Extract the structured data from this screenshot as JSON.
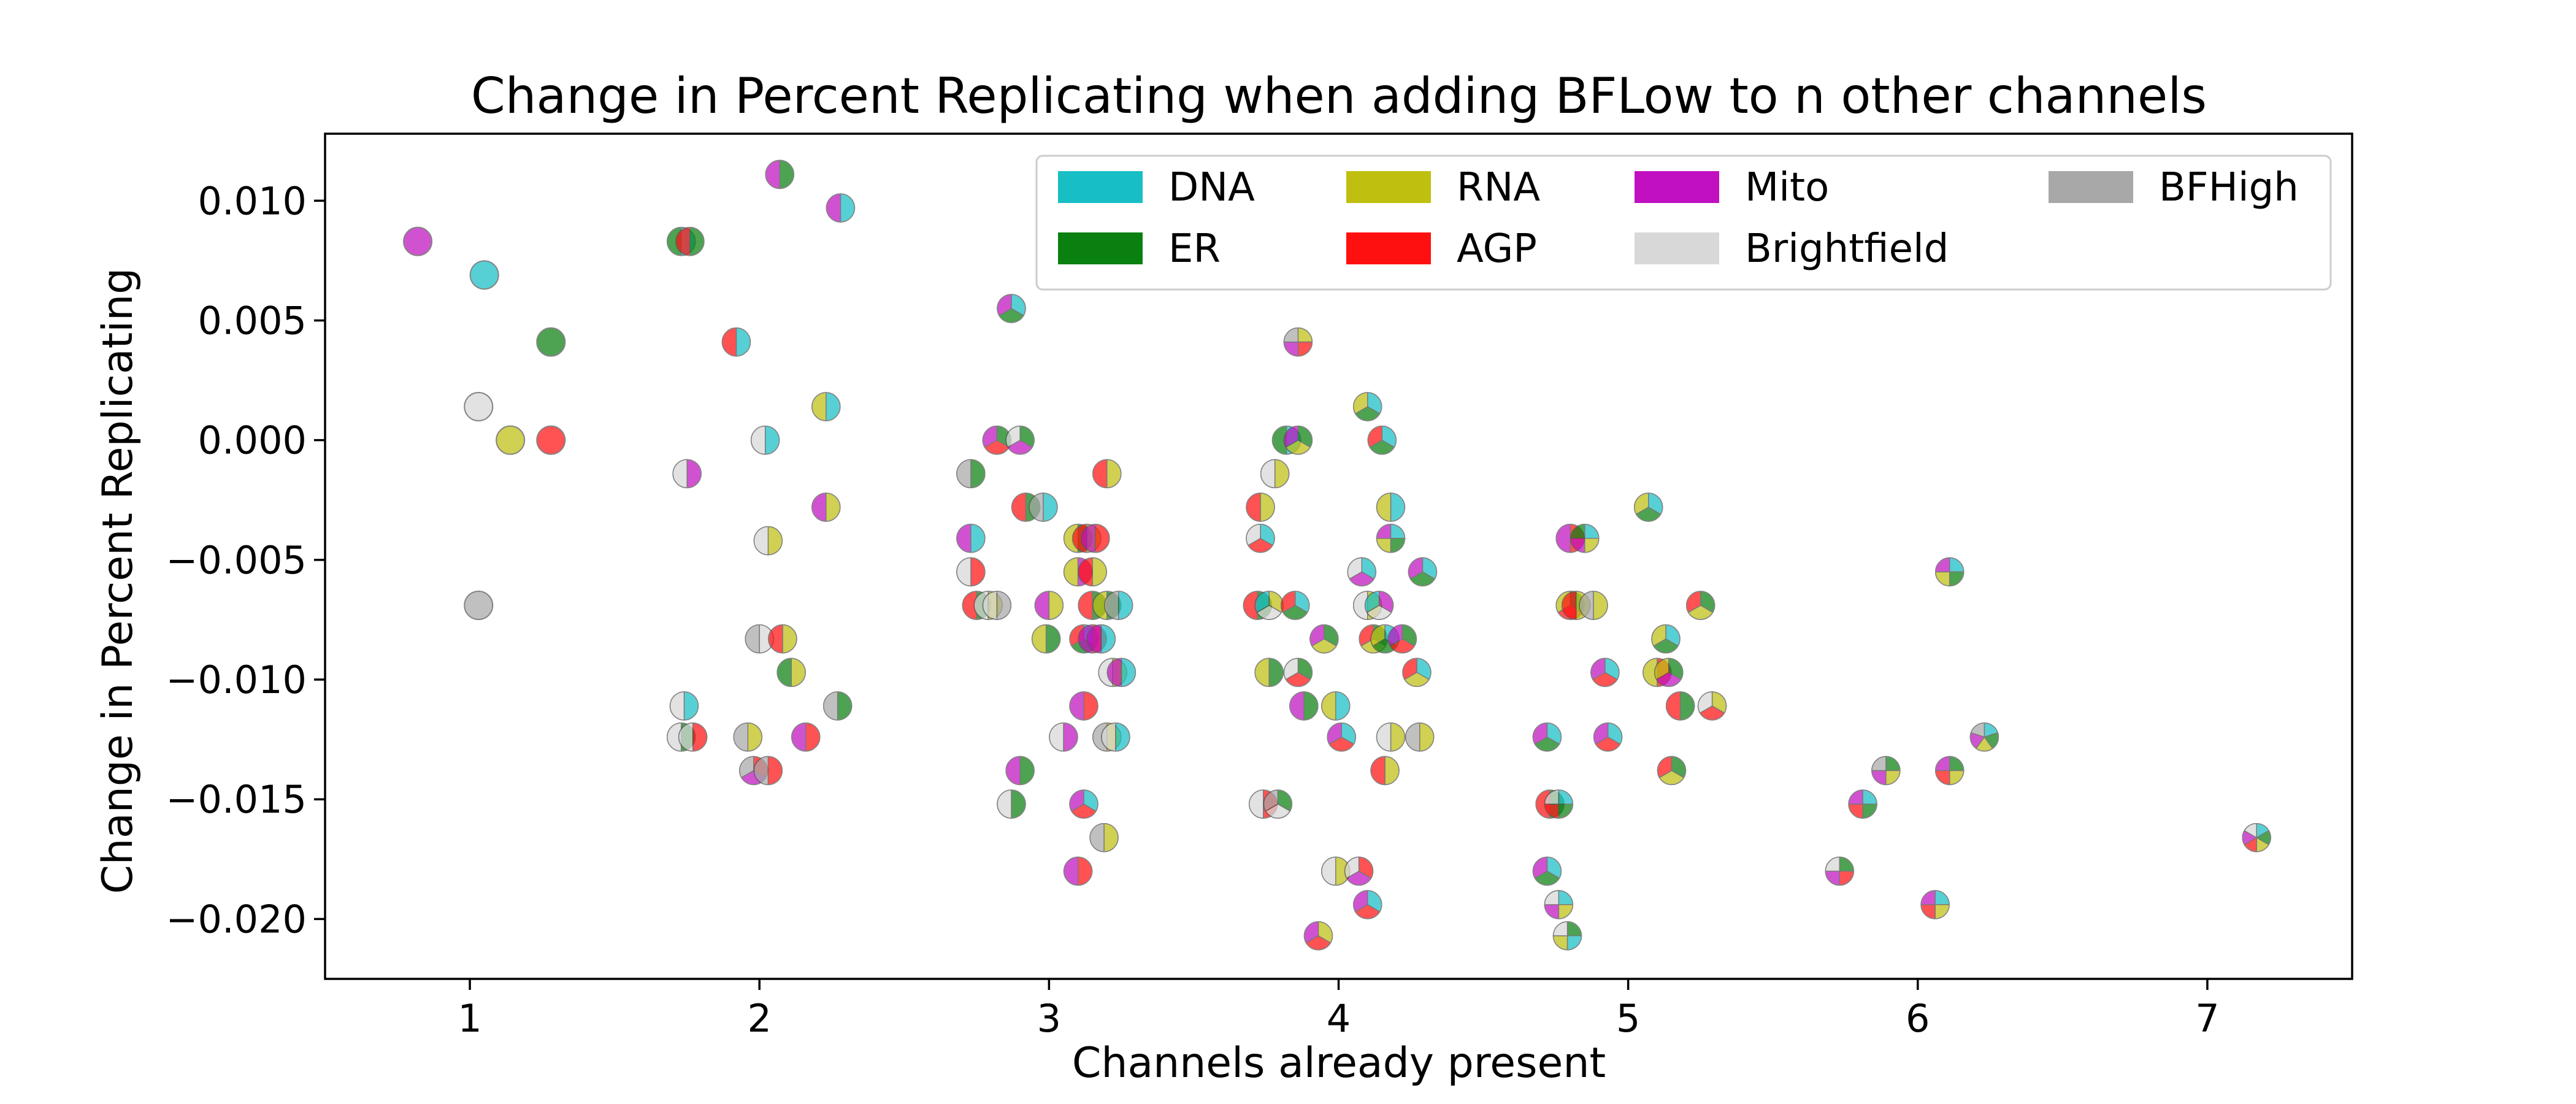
{
  "chart_data": {
    "type": "scatter",
    "title": "Change in Percent Replicating when adding BFLow to n other channels",
    "xlabel": "Channels already present",
    "ylabel": "Change in Percent Replicating",
    "xlim": [
      0.5,
      7.5
    ],
    "ylim": [
      -0.0225,
      0.0128
    ],
    "grid": false,
    "legend_position": "top-right",
    "x_ticks": [
      {
        "value": 1,
        "label": "1"
      },
      {
        "value": 2,
        "label": "2"
      },
      {
        "value": 3,
        "label": "3"
      },
      {
        "value": 4,
        "label": "4"
      },
      {
        "value": 5,
        "label": "5"
      },
      {
        "value": 6,
        "label": "6"
      },
      {
        "value": 7,
        "label": "7"
      }
    ],
    "y_ticks": [
      {
        "value": 0.01,
        "label": "0.010"
      },
      {
        "value": 0.005,
        "label": "0.005"
      },
      {
        "value": 0.0,
        "label": "0.000"
      },
      {
        "value": -0.005,
        "label": "−0.005"
      },
      {
        "value": -0.01,
        "label": "−0.010"
      },
      {
        "value": -0.015,
        "label": "−0.015"
      },
      {
        "value": -0.02,
        "label": "−0.020"
      }
    ],
    "channels": [
      {
        "key": "DNA",
        "name": "DNA",
        "color": "#17bfc5"
      },
      {
        "key": "ER",
        "name": "ER",
        "color": "#0a8010"
      },
      {
        "key": "RNA",
        "name": "RNA",
        "color": "#bfbf10"
      },
      {
        "key": "AGP",
        "name": "AGP",
        "color": "#ff1010"
      },
      {
        "key": "Mito",
        "name": "Mito",
        "color": "#c010c0"
      },
      {
        "key": "Brightfield",
        "name": "Brightfield",
        "color": "#d8d8d8"
      },
      {
        "key": "BFHigh",
        "name": "BFHigh",
        "color": "#a8a8a8"
      }
    ],
    "points": [
      {
        "x": 0.82,
        "y": 0.0083,
        "channels": [
          "Mito"
        ]
      },
      {
        "x": 1.05,
        "y": 0.0069,
        "channels": [
          "DNA"
        ]
      },
      {
        "x": 1.28,
        "y": 0.0041,
        "channels": [
          "ER"
        ]
      },
      {
        "x": 1.03,
        "y": 0.0014,
        "channels": [
          "Brightfield"
        ]
      },
      {
        "x": 1.14,
        "y": 0.0,
        "channels": [
          "RNA"
        ]
      },
      {
        "x": 1.28,
        "y": 0.0,
        "channels": [
          "AGP"
        ]
      },
      {
        "x": 1.03,
        "y": -0.0069,
        "channels": [
          "BFHigh"
        ]
      },
      {
        "x": 1.73,
        "y": 0.0083,
        "channels": [
          "DNA",
          "ER"
        ]
      },
      {
        "x": 1.76,
        "y": 0.0083,
        "channels": [
          "ER",
          "AGP"
        ]
      },
      {
        "x": 1.92,
        "y": 0.0041,
        "channels": [
          "DNA",
          "AGP"
        ]
      },
      {
        "x": 2.07,
        "y": 0.0111,
        "channels": [
          "ER",
          "Mito"
        ]
      },
      {
        "x": 2.28,
        "y": 0.0097,
        "channels": [
          "DNA",
          "Mito"
        ]
      },
      {
        "x": 2.02,
        "y": 0.0,
        "channels": [
          "DNA",
          "Brightfield"
        ]
      },
      {
        "x": 2.23,
        "y": 0.0014,
        "channels": [
          "DNA",
          "RNA"
        ]
      },
      {
        "x": 1.75,
        "y": -0.0014,
        "channels": [
          "Mito",
          "Brightfield"
        ]
      },
      {
        "x": 2.23,
        "y": -0.0028,
        "channels": [
          "RNA",
          "Mito"
        ]
      },
      {
        "x": 2.03,
        "y": -0.0042,
        "channels": [
          "RNA",
          "Brightfield"
        ]
      },
      {
        "x": 2.0,
        "y": -0.0083,
        "channels": [
          "Brightfield",
          "BFHigh"
        ]
      },
      {
        "x": 2.08,
        "y": -0.0083,
        "channels": [
          "RNA",
          "AGP"
        ]
      },
      {
        "x": 2.11,
        "y": -0.0097,
        "channels": [
          "RNA",
          "ER"
        ]
      },
      {
        "x": 1.74,
        "y": -0.0111,
        "channels": [
          "DNA",
          "Brightfield"
        ]
      },
      {
        "x": 2.27,
        "y": -0.0111,
        "channels": [
          "ER",
          "BFHigh"
        ]
      },
      {
        "x": 1.73,
        "y": -0.0124,
        "channels": [
          "ER",
          "Brightfield"
        ]
      },
      {
        "x": 1.77,
        "y": -0.0124,
        "channels": [
          "AGP",
          "Brightfield"
        ]
      },
      {
        "x": 1.96,
        "y": -0.0124,
        "channels": [
          "RNA",
          "BFHigh"
        ]
      },
      {
        "x": 2.16,
        "y": -0.0124,
        "channels": [
          "AGP",
          "Mito"
        ]
      },
      {
        "x": 1.98,
        "y": -0.0138,
        "channels": [
          "AGP",
          "Mito",
          "BFHigh"
        ]
      },
      {
        "x": 2.03,
        "y": -0.0138,
        "channels": [
          "AGP",
          "BFHigh"
        ]
      },
      {
        "x": 2.87,
        "y": 0.0055,
        "channels": [
          "DNA",
          "ER",
          "Mito"
        ]
      },
      {
        "x": 2.82,
        "y": 0.0,
        "channels": [
          "ER",
          "AGP",
          "Mito"
        ]
      },
      {
        "x": 2.9,
        "y": 0.0,
        "channels": [
          "ER",
          "Mito",
          "Brightfield"
        ]
      },
      {
        "x": 2.73,
        "y": -0.0014,
        "channels": [
          "ER",
          "BFHigh"
        ]
      },
      {
        "x": 3.2,
        "y": -0.0014,
        "channels": [
          "RNA",
          "AGP"
        ]
      },
      {
        "x": 2.92,
        "y": -0.0028,
        "channels": [
          "ER",
          "AGP"
        ]
      },
      {
        "x": 2.98,
        "y": -0.0028,
        "channels": [
          "DNA",
          "BFHigh"
        ]
      },
      {
        "x": 2.73,
        "y": -0.0041,
        "channels": [
          "DNA",
          "Mito"
        ]
      },
      {
        "x": 3.1,
        "y": -0.0041,
        "channels": [
          "ER",
          "RNA"
        ]
      },
      {
        "x": 3.13,
        "y": -0.0041,
        "channels": [
          "RNA",
          "AGP"
        ]
      },
      {
        "x": 3.16,
        "y": -0.0041,
        "channels": [
          "AGP",
          "Mito"
        ]
      },
      {
        "x": 2.73,
        "y": -0.0055,
        "channels": [
          "AGP",
          "Brightfield"
        ]
      },
      {
        "x": 3.1,
        "y": -0.0055,
        "channels": [
          "Mito",
          "RNA"
        ]
      },
      {
        "x": 3.15,
        "y": -0.0055,
        "channels": [
          "RNA",
          "AGP"
        ]
      },
      {
        "x": 2.75,
        "y": -0.0069,
        "channels": [
          "ER",
          "AGP"
        ]
      },
      {
        "x": 2.79,
        "y": -0.0069,
        "channels": [
          "RNA",
          "Brightfield"
        ]
      },
      {
        "x": 2.82,
        "y": -0.0069,
        "channels": [
          "BFHigh",
          "Brightfield"
        ]
      },
      {
        "x": 3.0,
        "y": -0.0069,
        "channels": [
          "RNA",
          "Mito"
        ]
      },
      {
        "x": 3.15,
        "y": -0.0069,
        "channels": [
          "ER",
          "AGP"
        ]
      },
      {
        "x": 3.2,
        "y": -0.0069,
        "channels": [
          "ER",
          "RNA"
        ]
      },
      {
        "x": 3.24,
        "y": -0.0069,
        "channels": [
          "DNA",
          "BFHigh"
        ]
      },
      {
        "x": 2.99,
        "y": -0.0083,
        "channels": [
          "ER",
          "RNA"
        ]
      },
      {
        "x": 3.12,
        "y": -0.0083,
        "channels": [
          "DNA",
          "ER",
          "AGP"
        ]
      },
      {
        "x": 3.15,
        "y": -0.0083,
        "channels": [
          "AGP",
          "Mito"
        ]
      },
      {
        "x": 3.18,
        "y": -0.0083,
        "channels": [
          "DNA",
          "Mito"
        ]
      },
      {
        "x": 3.22,
        "y": -0.0097,
        "channels": [
          "RNA",
          "Brightfield"
        ]
      },
      {
        "x": 3.25,
        "y": -0.0097,
        "channels": [
          "DNA",
          "Mito"
        ]
      },
      {
        "x": 3.12,
        "y": -0.0111,
        "channels": [
          "AGP",
          "Mito"
        ]
      },
      {
        "x": 3.05,
        "y": -0.0124,
        "channels": [
          "Mito",
          "Brightfield"
        ]
      },
      {
        "x": 3.2,
        "y": -0.0124,
        "channels": [
          "RNA",
          "BFHigh"
        ]
      },
      {
        "x": 3.23,
        "y": -0.0124,
        "channels": [
          "DNA",
          "Brightfield"
        ]
      },
      {
        "x": 2.9,
        "y": -0.0138,
        "channels": [
          "ER",
          "Mito"
        ]
      },
      {
        "x": 2.87,
        "y": -0.0152,
        "channels": [
          "ER",
          "Brightfield"
        ]
      },
      {
        "x": 3.12,
        "y": -0.0152,
        "channels": [
          "DNA",
          "AGP",
          "Mito"
        ]
      },
      {
        "x": 3.19,
        "y": -0.0166,
        "channels": [
          "RNA",
          "BFHigh"
        ]
      },
      {
        "x": 3.1,
        "y": -0.018,
        "channels": [
          "AGP",
          "Mito"
        ]
      },
      {
        "x": 3.86,
        "y": 0.0041,
        "channels": [
          "RNA",
          "AGP",
          "Mito",
          "BFHigh"
        ]
      },
      {
        "x": 4.1,
        "y": 0.0014,
        "channels": [
          "DNA",
          "ER",
          "RNA"
        ]
      },
      {
        "x": 3.82,
        "y": 0.0,
        "channels": [
          "DNA",
          "ER"
        ]
      },
      {
        "x": 3.86,
        "y": 0.0,
        "channels": [
          "ER",
          "RNA",
          "Mito"
        ]
      },
      {
        "x": 4.15,
        "y": 0.0,
        "channels": [
          "DNA",
          "ER",
          "AGP"
        ]
      },
      {
        "x": 3.78,
        "y": -0.0014,
        "channels": [
          "RNA",
          "Brightfield"
        ]
      },
      {
        "x": 3.73,
        "y": -0.0028,
        "channels": [
          "RNA",
          "AGP"
        ]
      },
      {
        "x": 4.18,
        "y": -0.0028,
        "channels": [
          "DNA",
          "RNA"
        ]
      },
      {
        "x": 3.73,
        "y": -0.0041,
        "channels": [
          "DNA",
          "AGP",
          "Brightfield"
        ]
      },
      {
        "x": 4.18,
        "y": -0.0041,
        "channels": [
          "DNA",
          "ER",
          "RNA",
          "Mito"
        ]
      },
      {
        "x": 4.08,
        "y": -0.0055,
        "channels": [
          "DNA",
          "Mito",
          "Brightfield"
        ]
      },
      {
        "x": 4.29,
        "y": -0.0055,
        "channels": [
          "DNA",
          "ER",
          "Mito"
        ]
      },
      {
        "x": 3.72,
        "y": -0.0069,
        "channels": [
          "ER",
          "AGP"
        ]
      },
      {
        "x": 3.76,
        "y": -0.0069,
        "channels": [
          "RNA",
          "Brightfield",
          "DNA"
        ]
      },
      {
        "x": 3.85,
        "y": -0.0069,
        "channels": [
          "DNA",
          "ER",
          "AGP"
        ]
      },
      {
        "x": 4.1,
        "y": -0.0069,
        "channels": [
          "RNA",
          "Brightfield"
        ]
      },
      {
        "x": 4.14,
        "y": -0.0069,
        "channels": [
          "Mito",
          "Brightfield",
          "DNA"
        ]
      },
      {
        "x": 3.95,
        "y": -0.0083,
        "channels": [
          "ER",
          "RNA",
          "Mito"
        ]
      },
      {
        "x": 4.12,
        "y": -0.0083,
        "channels": [
          "ER",
          "RNA",
          "AGP"
        ]
      },
      {
        "x": 4.16,
        "y": -0.0083,
        "channels": [
          "DNA",
          "ER",
          "RNA"
        ]
      },
      {
        "x": 4.22,
        "y": -0.0083,
        "channels": [
          "ER",
          "AGP",
          "Mito"
        ]
      },
      {
        "x": 3.76,
        "y": -0.0097,
        "channels": [
          "ER",
          "RNA"
        ]
      },
      {
        "x": 3.86,
        "y": -0.0097,
        "channels": [
          "ER",
          "AGP",
          "Brightfield"
        ]
      },
      {
        "x": 4.27,
        "y": -0.0097,
        "channels": [
          "DNA",
          "RNA",
          "AGP"
        ]
      },
      {
        "x": 3.88,
        "y": -0.0111,
        "channels": [
          "ER",
          "Mito"
        ]
      },
      {
        "x": 3.99,
        "y": -0.0111,
        "channels": [
          "DNA",
          "RNA"
        ]
      },
      {
        "x": 4.01,
        "y": -0.0124,
        "channels": [
          "DNA",
          "AGP",
          "Mito"
        ]
      },
      {
        "x": 4.18,
        "y": -0.0124,
        "channels": [
          "RNA",
          "Brightfield"
        ]
      },
      {
        "x": 4.28,
        "y": -0.0124,
        "channels": [
          "RNA",
          "BFHigh"
        ]
      },
      {
        "x": 4.16,
        "y": -0.0138,
        "channels": [
          "RNA",
          "AGP"
        ]
      },
      {
        "x": 3.74,
        "y": -0.0152,
        "channels": [
          "AGP",
          "Brightfield"
        ]
      },
      {
        "x": 3.79,
        "y": -0.0152,
        "channels": [
          "ER",
          "Brightfield",
          "BFHigh"
        ]
      },
      {
        "x": 3.99,
        "y": -0.018,
        "channels": [
          "RNA",
          "Brightfield"
        ]
      },
      {
        "x": 4.07,
        "y": -0.018,
        "channels": [
          "AGP",
          "Mito",
          "Brightfield"
        ]
      },
      {
        "x": 4.1,
        "y": -0.0194,
        "channels": [
          "DNA",
          "AGP",
          "Mito"
        ]
      },
      {
        "x": 3.93,
        "y": -0.0207,
        "channels": [
          "RNA",
          "AGP",
          "Mito"
        ]
      },
      {
        "x": 5.07,
        "y": -0.0028,
        "channels": [
          "DNA",
          "ER",
          "RNA"
        ]
      },
      {
        "x": 4.8,
        "y": -0.0041,
        "channels": [
          "AGP",
          "Mito"
        ]
      },
      {
        "x": 4.85,
        "y": -0.0041,
        "channels": [
          "DNA",
          "RNA",
          "Mito",
          "ER"
        ]
      },
      {
        "x": 4.8,
        "y": -0.0069,
        "channels": [
          "ER",
          "AGP",
          "RNA"
        ]
      },
      {
        "x": 4.82,
        "y": -0.0069,
        "channels": [
          "RNA",
          "AGP"
        ]
      },
      {
        "x": 4.88,
        "y": -0.0069,
        "channels": [
          "RNA",
          "BFHigh"
        ]
      },
      {
        "x": 5.25,
        "y": -0.0069,
        "channels": [
          "ER",
          "RNA",
          "AGP"
        ]
      },
      {
        "x": 5.13,
        "y": -0.0083,
        "channels": [
          "DNA",
          "ER",
          "RNA"
        ]
      },
      {
        "x": 4.92,
        "y": -0.0097,
        "channels": [
          "DNA",
          "AGP",
          "Mito"
        ]
      },
      {
        "x": 5.1,
        "y": -0.0097,
        "channels": [
          "AGP",
          "RNA"
        ]
      },
      {
        "x": 5.14,
        "y": -0.0097,
        "channels": [
          "ER",
          "Mito",
          "RNA"
        ]
      },
      {
        "x": 5.18,
        "y": -0.0111,
        "channels": [
          "ER",
          "AGP"
        ]
      },
      {
        "x": 5.29,
        "y": -0.0111,
        "channels": [
          "RNA",
          "AGP",
          "Brightfield"
        ]
      },
      {
        "x": 4.72,
        "y": -0.0124,
        "channels": [
          "DNA",
          "ER",
          "Mito"
        ]
      },
      {
        "x": 4.93,
        "y": -0.0124,
        "channels": [
          "DNA",
          "AGP",
          "Mito"
        ]
      },
      {
        "x": 5.15,
        "y": -0.0138,
        "channels": [
          "ER",
          "RNA",
          "AGP"
        ]
      },
      {
        "x": 4.73,
        "y": -0.0152,
        "channels": [
          "ER",
          "AGP"
        ]
      },
      {
        "x": 4.76,
        "y": -0.0152,
        "channels": [
          "DNA",
          "ER",
          "AGP",
          "Brightfield"
        ]
      },
      {
        "x": 4.72,
        "y": -0.018,
        "channels": [
          "DNA",
          "ER",
          "Mito"
        ]
      },
      {
        "x": 4.76,
        "y": -0.0194,
        "channels": [
          "DNA",
          "RNA",
          "Mito",
          "Brightfield"
        ]
      },
      {
        "x": 4.79,
        "y": -0.0207,
        "channels": [
          "ER",
          "DNA",
          "RNA",
          "Brightfield"
        ]
      },
      {
        "x": 6.11,
        "y": -0.0055,
        "channels": [
          "DNA",
          "ER",
          "RNA",
          "Mito"
        ]
      },
      {
        "x": 6.23,
        "y": -0.0124,
        "channels": [
          "DNA",
          "ER",
          "RNA",
          "Mito",
          "BFHigh"
        ]
      },
      {
        "x": 5.89,
        "y": -0.0138,
        "channels": [
          "ER",
          "RNA",
          "Mito",
          "BFHigh"
        ]
      },
      {
        "x": 6.11,
        "y": -0.0138,
        "channels": [
          "ER",
          "RNA",
          "AGP",
          "Mito"
        ]
      },
      {
        "x": 5.81,
        "y": -0.0152,
        "channels": [
          "DNA",
          "ER",
          "AGP",
          "Mito"
        ]
      },
      {
        "x": 5.73,
        "y": -0.018,
        "channels": [
          "ER",
          "AGP",
          "Mito",
          "Brightfield"
        ]
      },
      {
        "x": 6.06,
        "y": -0.0194,
        "channels": [
          "DNA",
          "RNA",
          "AGP",
          "Mito"
        ]
      },
      {
        "x": 7.17,
        "y": -0.0166,
        "channels": [
          "DNA",
          "ER",
          "RNA",
          "AGP",
          "Mito",
          "Brightfield"
        ]
      }
    ]
  }
}
